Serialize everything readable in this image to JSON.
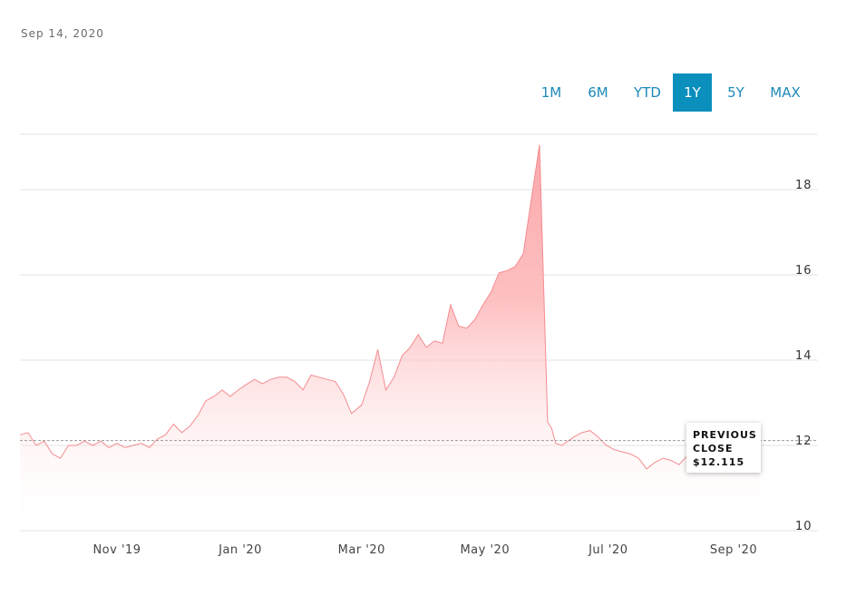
{
  "header": {
    "date": "Sep 14, 2020"
  },
  "range_tabs": [
    {
      "label": "1M",
      "active": false
    },
    {
      "label": "6M",
      "active": false
    },
    {
      "label": "YTD",
      "active": false
    },
    {
      "label": "1Y",
      "active": true
    },
    {
      "label": "5Y",
      "active": false
    },
    {
      "label": "MAX",
      "active": false
    }
  ],
  "tooltip": {
    "line1": "PREVIOUS",
    "line2": "CLOSE",
    "value": "$12.115"
  },
  "colors": {
    "accent": "#0b8fbd",
    "area_top": "#fca8aa",
    "line": "#f58c90",
    "tab_text": "#1d8ab7"
  },
  "chart_data": {
    "type": "area",
    "title": "",
    "xlabel": "",
    "ylabel": "",
    "ylim": [
      10,
      19.3
    ],
    "xlim": [
      "2019-09-14",
      "2020-09-14"
    ],
    "y_ticks": [
      {
        "value": 10,
        "label": "10"
      },
      {
        "value": 12,
        "label": "12"
      },
      {
        "value": 14,
        "label": "14"
      },
      {
        "value": 16,
        "label": "16"
      },
      {
        "value": 18,
        "label": "18"
      }
    ],
    "x_ticks": [
      {
        "date": "2019-11-01",
        "label": "Nov '19"
      },
      {
        "date": "2020-01-01",
        "label": "Jan '20"
      },
      {
        "date": "2020-03-01",
        "label": "Mar '20"
      },
      {
        "date": "2020-05-01",
        "label": "May '20"
      },
      {
        "date": "2020-07-01",
        "label": "Jul '20"
      },
      {
        "date": "2020-09-01",
        "label": "Sep '20"
      }
    ],
    "reference_line": {
      "name": "Previous Close",
      "value": 12.115,
      "style": "dashed"
    },
    "grid": true,
    "series": [
      {
        "x": [
          "2019-09-14",
          "2019-09-18",
          "2019-09-22",
          "2019-09-26",
          "2019-09-30",
          "2019-10-04",
          "2019-10-08",
          "2019-10-12",
          "2019-10-16",
          "2019-10-20",
          "2019-10-24",
          "2019-10-28",
          "2019-11-01",
          "2019-11-05",
          "2019-11-09",
          "2019-11-13",
          "2019-11-17",
          "2019-11-21",
          "2019-11-25",
          "2019-11-29",
          "2019-12-03",
          "2019-12-07",
          "2019-12-11",
          "2019-12-15",
          "2019-12-19",
          "2019-12-23",
          "2019-12-27",
          "2019-12-31",
          "2020-01-03",
          "2020-01-08",
          "2020-01-12",
          "2020-01-16",
          "2020-01-20",
          "2020-01-24",
          "2020-01-28",
          "2020-02-01",
          "2020-02-05",
          "2020-02-09",
          "2020-02-13",
          "2020-02-17",
          "2020-02-21",
          "2020-02-25",
          "2020-03-01",
          "2020-03-05",
          "2020-03-09",
          "2020-03-13",
          "2020-03-17",
          "2020-03-21",
          "2020-03-25",
          "2020-03-29",
          "2020-04-02",
          "2020-04-06",
          "2020-04-10",
          "2020-04-14",
          "2020-04-18",
          "2020-04-22",
          "2020-04-26",
          "2020-04-30",
          "2020-05-04",
          "2020-05-08",
          "2020-05-12",
          "2020-05-16",
          "2020-05-20",
          "2020-05-24",
          "2020-05-28",
          "2020-06-01",
          "2020-06-03",
          "2020-06-05",
          "2020-06-08",
          "2020-06-11",
          "2020-06-14",
          "2020-06-18",
          "2020-06-22",
          "2020-06-26",
          "2020-06-30",
          "2020-07-04",
          "2020-07-08",
          "2020-07-12",
          "2020-07-16",
          "2020-07-20",
          "2020-07-24",
          "2020-07-28",
          "2020-08-01",
          "2020-08-05",
          "2020-08-09",
          "2020-08-13",
          "2020-08-17",
          "2020-08-21",
          "2020-08-25",
          "2020-08-29",
          "2020-09-02",
          "2020-09-06",
          "2020-09-10",
          "2020-09-14"
        ],
        "values": [
          12.25,
          12.3,
          12.0,
          12.1,
          11.8,
          11.7,
          12.0,
          12.0,
          12.1,
          12.0,
          12.1,
          11.95,
          12.05,
          11.95,
          12.0,
          12.05,
          11.95,
          12.15,
          12.25,
          12.5,
          12.3,
          12.45,
          12.7,
          13.05,
          13.15,
          13.3,
          13.15,
          13.3,
          13.4,
          13.55,
          13.45,
          13.55,
          13.6,
          13.6,
          13.5,
          13.3,
          13.65,
          13.6,
          13.55,
          13.5,
          13.2,
          12.75,
          12.95,
          13.5,
          14.25,
          13.3,
          13.6,
          14.1,
          14.3,
          14.6,
          14.3,
          14.45,
          14.4,
          15.3,
          14.8,
          14.75,
          14.95,
          15.3,
          15.6,
          16.05,
          16.1,
          16.2,
          16.5,
          17.8,
          19.05,
          12.55,
          12.4,
          12.05,
          12.0,
          12.1,
          12.2,
          12.3,
          12.35,
          12.2,
          12.0,
          11.9,
          11.85,
          11.8,
          11.7,
          11.45,
          11.6,
          11.7,
          11.65,
          11.55,
          11.75,
          11.8,
          11.6,
          11.65,
          11.7,
          11.75,
          11.65,
          11.6,
          11.65,
          11.7
        ]
      }
    ]
  }
}
